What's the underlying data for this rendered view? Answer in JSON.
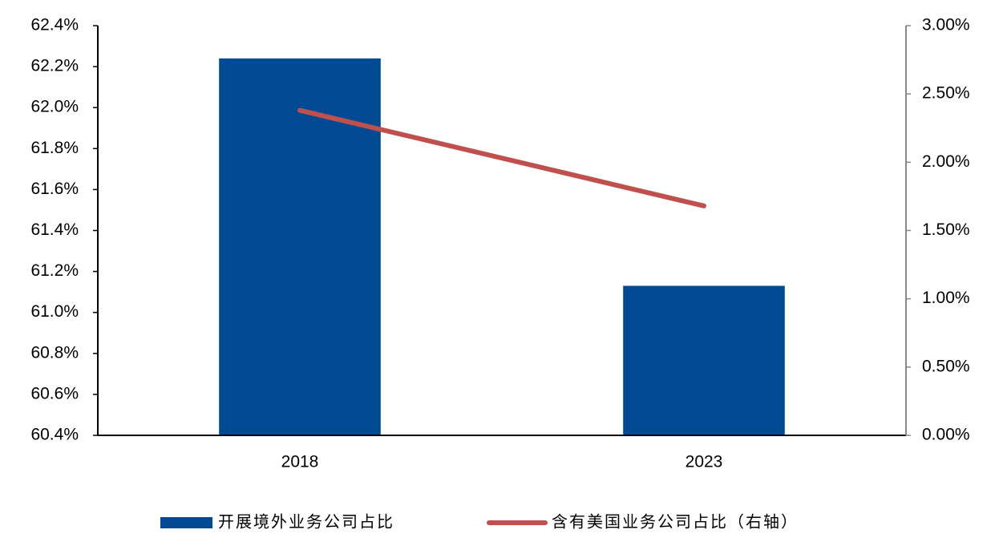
{
  "chart_data": {
    "type": "bar",
    "categories": [
      "2018",
      "2023"
    ],
    "series": [
      {
        "name": "开展境外业务公司占比",
        "color": "#004a93",
        "type": "bar",
        "values": [
          62.24,
          61.13
        ]
      },
      {
        "name": "含有美国业务公司占比（右轴）",
        "color": "#c0504d",
        "type": "line",
        "axis": "y2",
        "values": [
          2.38,
          1.68
        ]
      }
    ],
    "ylim": [
      60.4,
      62.4
    ],
    "yticks": [
      {
        "value": 60.4,
        "label": "60.4%"
      },
      {
        "value": 60.6,
        "label": "60.6%"
      },
      {
        "value": 60.8,
        "label": "60.8%"
      },
      {
        "value": 61.0,
        "label": "61.0%"
      },
      {
        "value": 61.2,
        "label": "61.2%"
      },
      {
        "value": 61.4,
        "label": "61.4%"
      },
      {
        "value": 61.6,
        "label": "61.6%"
      },
      {
        "value": 61.8,
        "label": "61.8%"
      },
      {
        "value": 62.0,
        "label": "62.0%"
      },
      {
        "value": 62.2,
        "label": "62.2%"
      },
      {
        "value": 62.4,
        "label": "62.4%"
      }
    ],
    "y2lim": [
      0,
      3
    ],
    "y2ticks": [
      {
        "value": 0,
        "label": "0.00%"
      },
      {
        "value": 0.5,
        "label": "0.50%"
      },
      {
        "value": 1.0,
        "label": "1.00%"
      },
      {
        "value": 1.5,
        "label": "1.50%"
      },
      {
        "value": 2.0,
        "label": "2.00%"
      },
      {
        "value": 2.5,
        "label": "2.50%"
      },
      {
        "value": 3.0,
        "label": "3.00%"
      }
    ],
    "grid": false,
    "legend": "bottom"
  }
}
